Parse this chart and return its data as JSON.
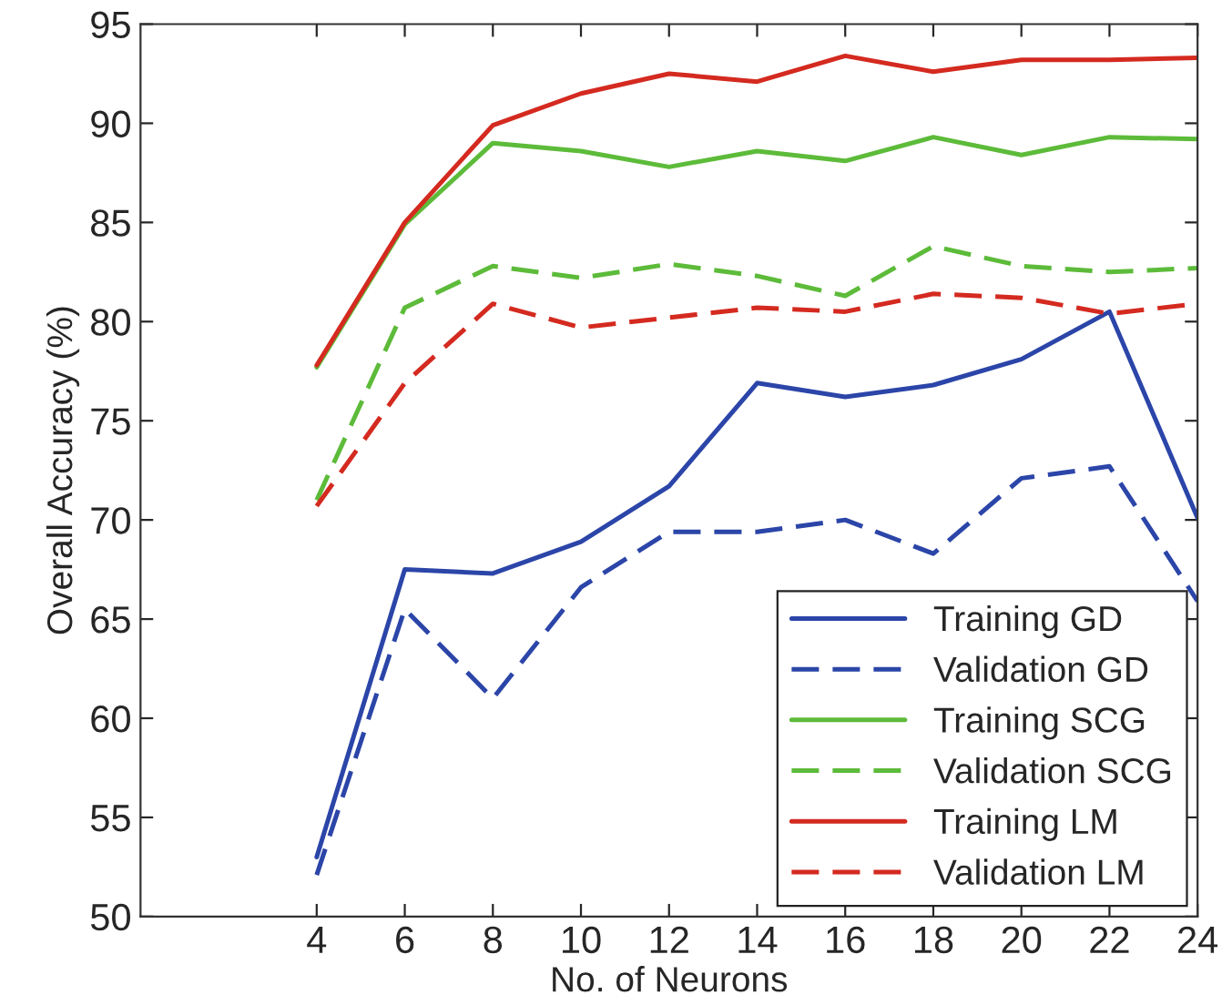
{
  "chart_data": {
    "type": "line",
    "xlabel": "No. of Neurons",
    "ylabel": "Overall Accuracy (%)",
    "x": [
      4,
      6,
      8,
      10,
      12,
      14,
      16,
      18,
      20,
      22,
      24
    ],
    "xlim": [
      0,
      24
    ],
    "xticks": [
      4,
      6,
      8,
      10,
      12,
      14,
      16,
      18,
      20,
      22,
      24
    ],
    "ylim": [
      50,
      95
    ],
    "yticks": [
      50,
      55,
      60,
      65,
      70,
      75,
      80,
      85,
      90,
      95
    ],
    "grid": false,
    "legend": "bottom right",
    "marker": "none",
    "series": [
      {
        "name": "Training GD",
        "color": "#2b45a8",
        "line_style": "solid",
        "values": [
          53.0,
          67.5,
          67.3,
          68.9,
          71.7,
          76.9,
          76.2,
          76.8,
          78.1,
          80.5,
          70.1
        ]
      },
      {
        "name": "Validation GD",
        "color": "#2b45a8",
        "line_style": "dashed",
        "values": [
          52.1,
          65.5,
          61.0,
          66.6,
          69.4,
          69.4,
          70.0,
          68.3,
          72.1,
          72.7,
          65.9
        ]
      },
      {
        "name": "Training SCG",
        "color": "#5dbb3a",
        "line_style": "solid",
        "values": [
          77.7,
          84.9,
          89.0,
          88.6,
          87.8,
          88.6,
          88.1,
          89.3,
          88.4,
          89.3,
          89.2
        ]
      },
      {
        "name": "Validation SCG",
        "color": "#5dbb3a",
        "line_style": "dashed",
        "values": [
          71.0,
          80.7,
          82.8,
          82.2,
          82.9,
          82.3,
          81.3,
          83.8,
          82.8,
          82.5,
          82.7
        ]
      },
      {
        "name": "Training LM",
        "color": "#d42a20",
        "line_style": "solid",
        "values": [
          77.8,
          85.0,
          89.9,
          91.5,
          92.5,
          92.1,
          93.4,
          92.6,
          93.2,
          93.2,
          93.3
        ]
      },
      {
        "name": "Validation LM",
        "color": "#d42a20",
        "line_style": "dashed",
        "values": [
          70.7,
          76.9,
          80.9,
          79.7,
          80.2,
          80.7,
          80.5,
          81.4,
          81.2,
          80.4,
          80.9
        ]
      }
    ]
  }
}
